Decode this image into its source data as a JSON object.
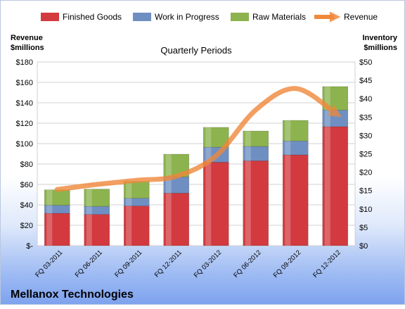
{
  "company": "Mellanox Technologies",
  "chart_data": {
    "type": "bar",
    "stacked": true,
    "title": "Quarterly Periods",
    "ylabel_left": "Revenue $millions",
    "ylabel_right": "Inventory $millions",
    "y_left_lim": [
      0,
      180
    ],
    "y_right_lim": [
      0,
      50
    ],
    "y_left_ticks": [
      "$-",
      "$20",
      "$40",
      "$60",
      "$80",
      "$100",
      "$120",
      "$140",
      "$160",
      "$180"
    ],
    "y_right_ticks": [
      "$0",
      "$5",
      "$10",
      "$15",
      "$20",
      "$25",
      "$30",
      "$35",
      "$40",
      "$45",
      "$50"
    ],
    "categories": [
      "FQ 03-2011",
      "FQ 06-2011",
      "FQ 09-2011",
      "FQ 12-2011",
      "FQ 03-2012",
      "FQ 06-2012",
      "FQ 09-2012",
      "FQ 12-2012"
    ],
    "grid": true,
    "legend_position": "top",
    "series": [
      {
        "name": "Finished Goods",
        "axis": "right",
        "type": "bar",
        "color": "#d23a3f",
        "values": [
          8.8,
          8.5,
          10.8,
          14.3,
          22.7,
          23.1,
          24.7,
          32.4
        ]
      },
      {
        "name": "Work in Progress",
        "axis": "right",
        "type": "bar",
        "color": "#6f8fc2",
        "values": [
          2.2,
          2.2,
          2.1,
          4.4,
          4.1,
          3.9,
          3.8,
          4.5
        ]
      },
      {
        "name": "Raw Materials",
        "axis": "right",
        "type": "bar",
        "color": "#8cb34e",
        "values": [
          4.2,
          4.7,
          4.6,
          6.2,
          5.4,
          4.2,
          5.6,
          6.4
        ]
      },
      {
        "name": "Revenue",
        "axis": "left",
        "type": "line",
        "color": "#f0883a",
        "values": [
          55,
          60,
          64,
          68,
          88,
          133,
          154,
          130
        ]
      }
    ]
  }
}
